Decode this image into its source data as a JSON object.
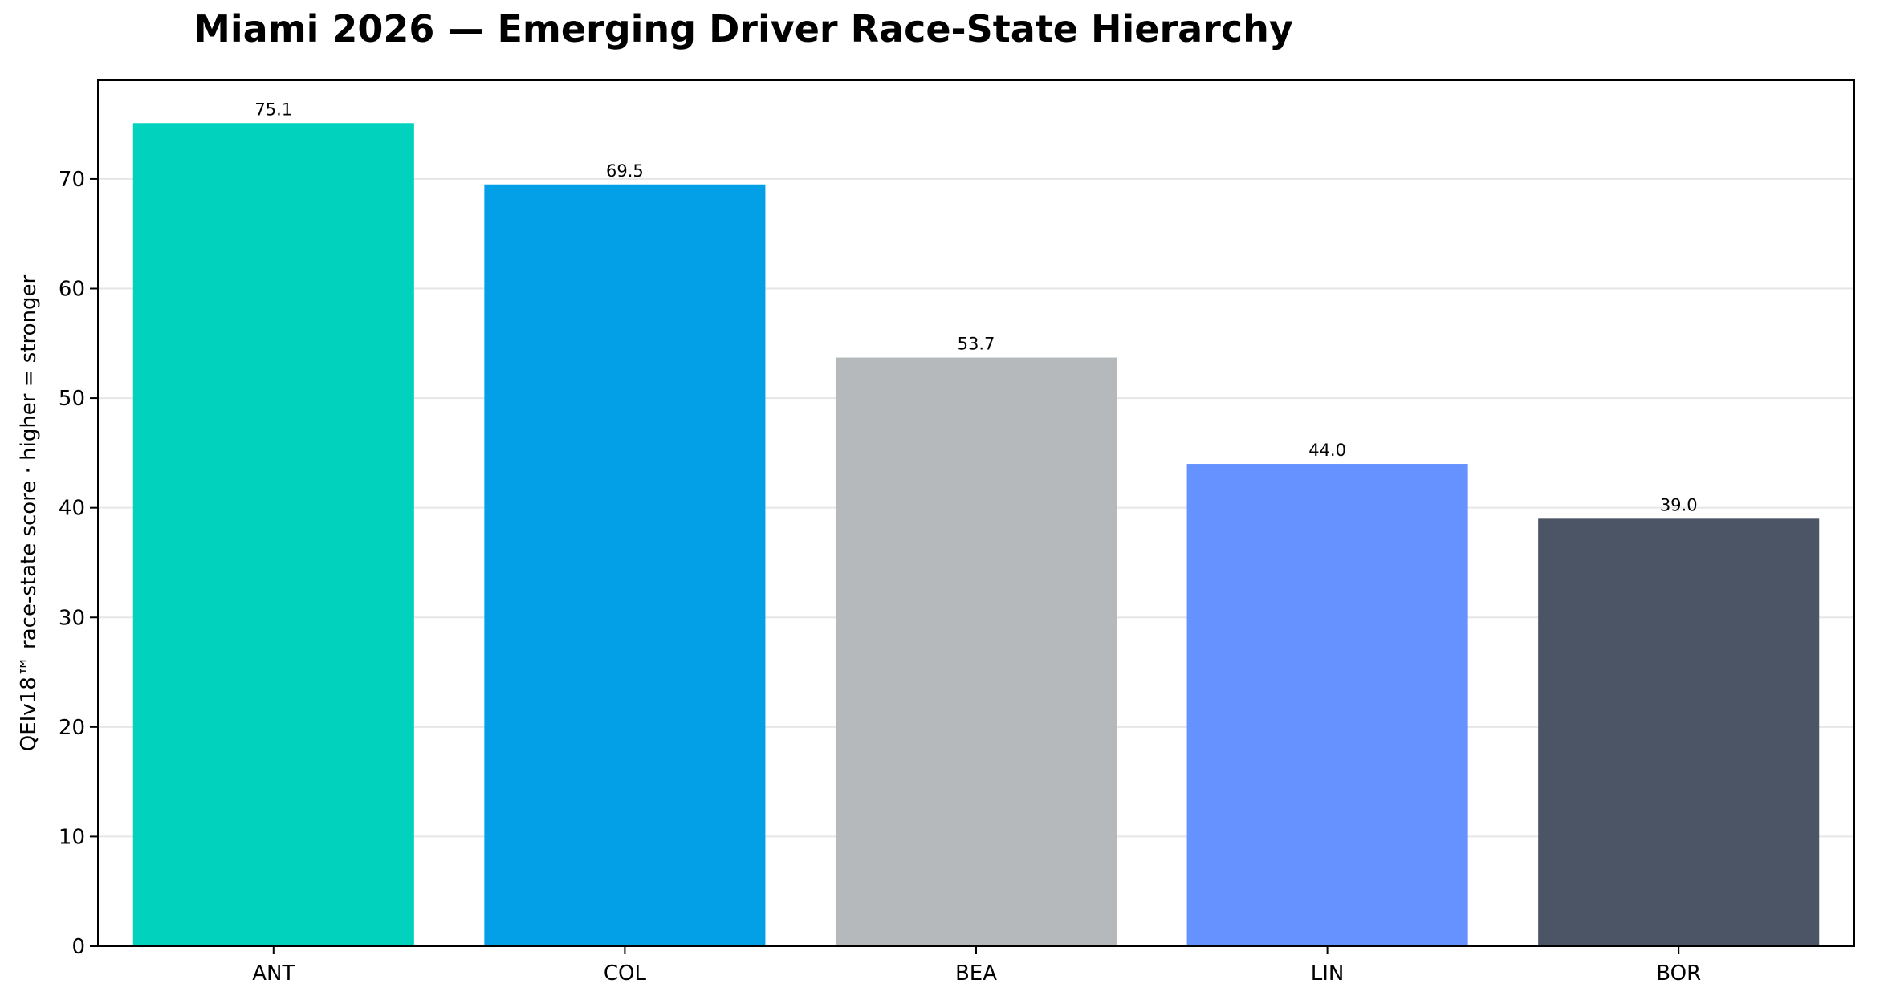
{
  "chart_data": {
    "type": "bar",
    "title": "Miami 2026 — Emerging Driver Race-State Hierarchy",
    "xlabel": "",
    "ylabel": "QEIv18™ race-state score · higher = stronger",
    "categories": [
      "ANT",
      "COL",
      "BEA",
      "LIN",
      "BOR"
    ],
    "values": [
      75.1,
      69.5,
      53.7,
      44.0,
      39.0
    ],
    "value_labels": [
      "75.1",
      "69.5",
      "53.7",
      "44.0",
      "39.0"
    ],
    "colors": [
      "#00d2be",
      "#03a0e8",
      "#b6b9bc",
      "#6692ff",
      "#4b5565"
    ],
    "ylim": [
      0,
      79
    ],
    "yticks": [
      0,
      10,
      20,
      30,
      40,
      50,
      60,
      70
    ],
    "grid": "y",
    "legend": "none"
  }
}
